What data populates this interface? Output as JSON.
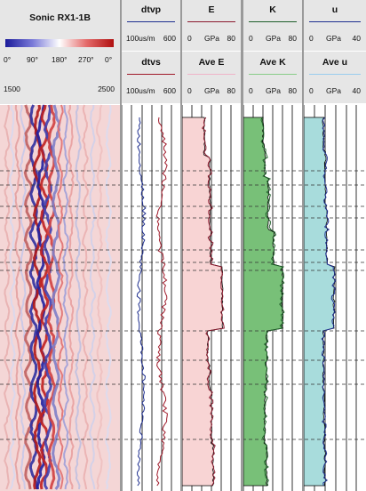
{
  "sonic_panel": {
    "title": "Sonic RX1-1B",
    "phase_labels": [
      "0°",
      "90°",
      "180°",
      "270°",
      "0°"
    ],
    "depth_min": "1500",
    "depth_max": "2500"
  },
  "tracks": {
    "slowness": {
      "curves": [
        {
          "name": "dtvp",
          "scale_left": "100us/m",
          "scale_right": "600",
          "color": "#1f2f8f"
        },
        {
          "name": "dtvs",
          "scale_left": "100us/m",
          "scale_right": "600",
          "color": "#a01a2a"
        }
      ]
    },
    "youngs": {
      "curves": [
        {
          "name": "E",
          "scale_left": "0",
          "scale_unit": "GPa",
          "scale_right": "80",
          "color": "#8b1a2e"
        },
        {
          "name": "Ave E",
          "scale_left": "0",
          "scale_unit": "GPa",
          "scale_right": "80",
          "color": "#f0b4c8"
        }
      ],
      "fill": "#f8d4d4"
    },
    "bulk": {
      "curves": [
        {
          "name": "K",
          "scale_left": "0",
          "scale_unit": "GPa",
          "scale_right": "80",
          "color": "#1f5f2a"
        },
        {
          "name": "Ave K",
          "scale_left": "0",
          "scale_unit": "GPa",
          "scale_right": "80",
          "color": "#88cc88"
        }
      ],
      "fill": "#78c078"
    },
    "shear": {
      "curves": [
        {
          "name": "u",
          "scale_left": "0",
          "scale_unit": "GPa",
          "scale_right": "40",
          "color": "#1f2f8f"
        },
        {
          "name": "Ave u",
          "scale_left": "0",
          "scale_unit": "GPa",
          "scale_right": "40",
          "color": "#99ccee"
        }
      ],
      "fill": "#a8dcdc"
    }
  }
}
